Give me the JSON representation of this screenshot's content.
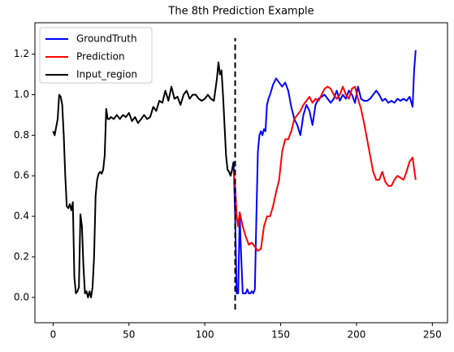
{
  "chart_data": {
    "type": "line",
    "title": "The 8th Prediction Example",
    "xlim": [
      -12,
      260
    ],
    "xticks": [
      0,
      50,
      100,
      150,
      200,
      250
    ],
    "ylim": [
      -0.125,
      1.355
    ],
    "yticks": [
      {
        "value": 0,
        "label": "0.0"
      },
      0.2,
      0.4,
      0.6,
      0.8,
      {
        "value": 1,
        "label": "1.0"
      },
      1.2
    ],
    "legend": "upper left",
    "vline": {
      "x": 120,
      "ymin": -0.06,
      "ymax": 1.28,
      "color": "#000000"
    },
    "series": [
      {
        "name": "GroundTruth",
        "color": "#0000ff",
        "x": [
          119,
          120,
          121,
          122,
          123,
          124,
          125,
          126,
          127,
          128,
          129,
          130,
          131,
          132,
          133,
          134,
          135,
          136,
          137,
          138,
          139,
          140,
          141,
          142,
          143,
          145,
          147,
          149,
          151,
          153,
          155,
          157,
          159,
          161,
          163,
          165,
          167,
          169,
          171,
          173,
          175,
          177,
          179,
          181,
          183,
          185,
          187,
          189,
          191,
          193,
          195,
          197,
          199,
          201,
          203,
          205,
          207,
          209,
          211,
          213,
          215,
          217,
          219,
          221,
          223,
          225,
          227,
          229,
          231,
          233,
          235,
          237,
          238,
          239
        ],
        "values": [
          0.67,
          0.4,
          0.02,
          0.02,
          0.4,
          0.2,
          0.02,
          0.02,
          0.02,
          0.04,
          0.02,
          0.02,
          0.03,
          0.02,
          0.04,
          0.4,
          0.72,
          0.8,
          0.82,
          0.8,
          0.83,
          0.82,
          0.95,
          0.98,
          1.0,
          1.05,
          1.08,
          1.06,
          1.04,
          1.06,
          1.02,
          0.94,
          0.88,
          0.85,
          0.8,
          0.9,
          0.95,
          0.92,
          0.85,
          0.95,
          0.98,
          0.99,
          1.0,
          0.98,
          0.96,
          0.98,
          1.02,
          0.97,
          1.0,
          0.98,
          1.02,
          1.0,
          0.96,
          1.04,
          0.98,
          0.97,
          0.97,
          0.98,
          1.0,
          1.02,
          1.0,
          0.97,
          0.98,
          0.96,
          0.97,
          0.96,
          0.98,
          0.97,
          0.98,
          0.97,
          0.99,
          0.94,
          1.12,
          1.22
        ]
      },
      {
        "name": "Prediction",
        "color": "#ff0000",
        "x": [
          119,
          120,
          121,
          122,
          123,
          125,
          127,
          129,
          131,
          133,
          135,
          137,
          139,
          141,
          143,
          145,
          147,
          149,
          151,
          153,
          155,
          157,
          159,
          161,
          163,
          165,
          167,
          169,
          171,
          173,
          175,
          177,
          179,
          181,
          183,
          185,
          187,
          189,
          191,
          193,
          195,
          197,
          199,
          201,
          203,
          205,
          207,
          209,
          211,
          213,
          215,
          217,
          219,
          221,
          223,
          225,
          227,
          229,
          231,
          233,
          235,
          237,
          239
        ],
        "values": [
          0.62,
          0.55,
          0.4,
          0.35,
          0.42,
          0.35,
          0.3,
          0.26,
          0.27,
          0.25,
          0.23,
          0.24,
          0.35,
          0.4,
          0.4,
          0.45,
          0.52,
          0.58,
          0.72,
          0.78,
          0.78,
          0.82,
          0.88,
          0.9,
          0.92,
          0.95,
          0.97,
          0.99,
          0.96,
          0.98,
          0.97,
          1.0,
          1.03,
          1.04,
          1.03,
          1.0,
          0.98,
          1.0,
          1.04,
          1.0,
          0.98,
          1.03,
          1.04,
          0.98,
          0.93,
          0.86,
          0.78,
          0.7,
          0.62,
          0.58,
          0.58,
          0.62,
          0.57,
          0.55,
          0.55,
          0.58,
          0.6,
          0.59,
          0.58,
          0.62,
          0.67,
          0.69,
          0.58
        ]
      },
      {
        "name": "Input_region",
        "color": "#000000",
        "x": [
          0,
          1,
          2,
          3,
          4,
          5,
          6,
          7,
          8,
          9,
          10,
          11,
          12,
          13,
          14,
          15,
          16,
          17,
          18,
          19,
          20,
          21,
          22,
          23,
          24,
          25,
          26,
          27,
          28,
          29,
          30,
          31,
          32,
          33,
          34,
          35,
          36,
          37,
          38,
          40,
          42,
          44,
          46,
          48,
          50,
          52,
          54,
          56,
          58,
          60,
          62,
          64,
          66,
          68,
          70,
          72,
          74,
          76,
          78,
          80,
          82,
          84,
          86,
          88,
          90,
          92,
          94,
          96,
          98,
          100,
          102,
          104,
          106,
          108,
          109,
          110,
          111,
          112,
          113,
          114,
          115,
          116,
          117,
          118,
          119
        ],
        "values": [
          0.82,
          0.8,
          0.84,
          0.88,
          1.0,
          0.99,
          0.95,
          0.8,
          0.6,
          0.45,
          0.44,
          0.46,
          0.43,
          0.47,
          0.1,
          0.02,
          0.03,
          0.05,
          0.41,
          0.35,
          0.15,
          0.02,
          0.03,
          0.0,
          0.03,
          0.0,
          0.05,
          0.2,
          0.5,
          0.58,
          0.61,
          0.62,
          0.61,
          0.63,
          0.7,
          0.93,
          0.88,
          0.88,
          0.89,
          0.88,
          0.9,
          0.88,
          0.9,
          0.89,
          0.91,
          0.87,
          0.89,
          0.86,
          0.88,
          0.9,
          0.88,
          0.89,
          0.94,
          0.92,
          0.97,
          0.96,
          1.02,
          0.97,
          1.04,
          0.98,
          0.99,
          0.95,
          1.0,
          1.02,
          0.98,
          1.0,
          1.0,
          0.98,
          0.97,
          0.98,
          1.0,
          0.98,
          0.97,
          1.08,
          1.16,
          1.1,
          1.12,
          1.0,
          0.85,
          0.7,
          0.63,
          0.62,
          0.6,
          0.63,
          0.67
        ]
      }
    ]
  }
}
